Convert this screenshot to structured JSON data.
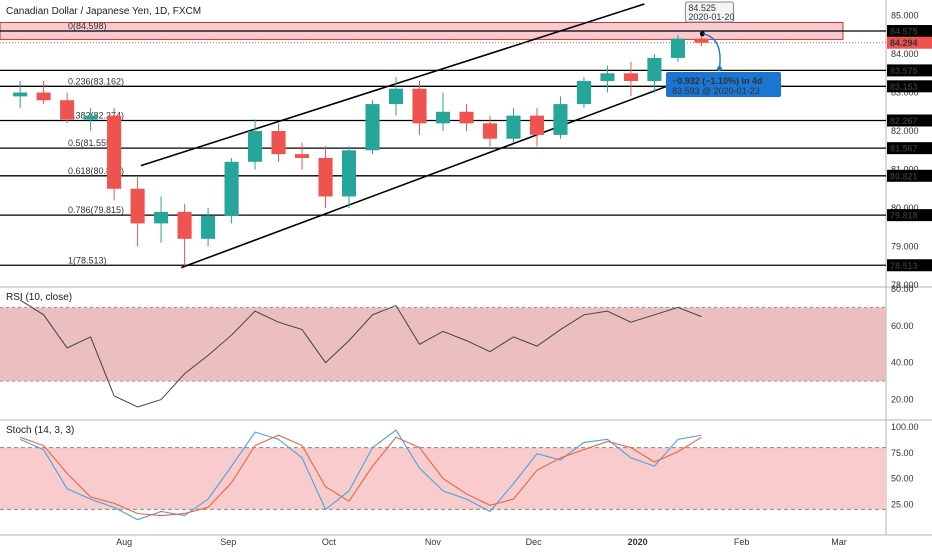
{
  "title": "Canadian Dollar / Japanese Yen, 1D, FXCM",
  "colors": {
    "up": "#26a69a",
    "down": "#ef5350",
    "rsi_line": "#444444",
    "rsi_band": "#e8b4b4",
    "stoch_band": "#f7c6c6",
    "stoch_k": "#4aa3df",
    "stoch_d": "#f0643c",
    "highlight_box": "#f5b8c0",
    "measure": "#1976d2"
  },
  "chart_data": [
    {
      "type": "candlestick",
      "name": "price",
      "title": "Canadian Dollar / Japanese Yen, 1D, FXCM",
      "ylim": [
        78.0,
        85.3
      ],
      "y_ticks": [
        "85.000",
        "84.000",
        "83.000",
        "82.000",
        "81.000",
        "80.000",
        "79.000",
        "78.000"
      ],
      "x_ticks": [
        "Aug",
        "Sep",
        "Oct",
        "Nov",
        "Dec",
        "2020",
        "Feb",
        "Mar"
      ],
      "fib_levels": [
        {
          "label": "0(84.598)",
          "value": 84.598,
          "axis_label": "84.575"
        },
        {
          "label": "0.236(83.162)",
          "value": 83.162,
          "axis_label": "83.153"
        },
        {
          "label": "0.382(82.274)",
          "value": 82.274,
          "axis_label": "82.267"
        },
        {
          "label": "0.5(81.555)",
          "value": 81.555,
          "axis_label": "81.567"
        },
        {
          "label": "0.618(80.837)",
          "value": 80.837,
          "axis_label": "80.821"
        },
        {
          "label": "0.786(79.815)",
          "value": 79.815,
          "axis_label": "79.818"
        },
        {
          "label": "1(78.513)",
          "value": 78.513,
          "axis_label": "78.513"
        }
      ],
      "extra_level": {
        "value": 83.575,
        "axis_label": "83.575"
      },
      "current_price": {
        "value": 84.294,
        "label": "84.294"
      },
      "high_callout": {
        "price": "84.525",
        "date": "2020-01-20"
      },
      "measure_callout": {
        "change": "−0.932 (−1.10%) in 4d",
        "target": "83.593 @ 2020-01-23"
      },
      "channel": {
        "upper": [
          [
            "2019-08-06",
            81.1
          ],
          [
            "2020-01-03",
            85.3
          ]
        ],
        "lower": [
          [
            "2019-08-18",
            78.45
          ],
          [
            "2020-01-17",
            83.4
          ]
        ]
      },
      "candles": [
        [
          "2019-07-01",
          82.9,
          83.3,
          82.6,
          83.0
        ],
        [
          "2019-07-08",
          83.0,
          83.3,
          82.7,
          82.8
        ],
        [
          "2019-07-15",
          82.8,
          83.0,
          82.2,
          82.3
        ],
        [
          "2019-07-22",
          82.3,
          82.6,
          82.0,
          82.4
        ],
        [
          "2019-07-29",
          82.4,
          82.6,
          80.2,
          80.5
        ],
        [
          "2019-08-05",
          80.5,
          80.8,
          79.0,
          79.6
        ],
        [
          "2019-08-12",
          79.6,
          80.3,
          79.1,
          79.9
        ],
        [
          "2019-08-19",
          79.9,
          80.1,
          78.5,
          79.2
        ],
        [
          "2019-08-26",
          79.2,
          80.0,
          79.0,
          79.8
        ],
        [
          "2019-09-02",
          79.8,
          81.3,
          79.6,
          81.2
        ],
        [
          "2019-09-09",
          81.2,
          82.3,
          81.0,
          82.0
        ],
        [
          "2019-09-16",
          82.0,
          82.2,
          81.2,
          81.4
        ],
        [
          "2019-09-23",
          81.4,
          81.7,
          81.0,
          81.3
        ],
        [
          "2019-09-30",
          81.3,
          81.6,
          80.0,
          80.3
        ],
        [
          "2019-10-07",
          80.3,
          81.6,
          80.0,
          81.5
        ],
        [
          "2019-10-14",
          81.5,
          82.8,
          81.4,
          82.7
        ],
        [
          "2019-10-21",
          82.7,
          83.4,
          82.4,
          83.1
        ],
        [
          "2019-10-28",
          83.1,
          83.3,
          81.9,
          82.2
        ],
        [
          "2019-11-04",
          82.2,
          83.0,
          82.0,
          82.5
        ],
        [
          "2019-11-11",
          82.5,
          82.7,
          82.0,
          82.2
        ],
        [
          "2019-11-18",
          82.2,
          82.4,
          81.6,
          81.8
        ],
        [
          "2019-11-25",
          81.8,
          82.6,
          81.7,
          82.4
        ],
        [
          "2019-12-02",
          82.4,
          82.6,
          81.6,
          81.9
        ],
        [
          "2019-12-09",
          81.9,
          82.9,
          81.8,
          82.7
        ],
        [
          "2019-12-16",
          82.7,
          83.4,
          82.6,
          83.3
        ],
        [
          "2019-12-23",
          83.3,
          83.7,
          83.0,
          83.5
        ],
        [
          "2019-12-30",
          83.5,
          83.8,
          82.9,
          83.3
        ],
        [
          "2020-01-06",
          83.3,
          84.0,
          83.0,
          83.9
        ],
        [
          "2020-01-13",
          83.9,
          84.5,
          83.8,
          84.4
        ],
        [
          "2020-01-20",
          84.4,
          84.525,
          84.2,
          84.294
        ]
      ]
    },
    {
      "type": "line",
      "name": "rsi",
      "title": "RSI (10, close)",
      "ylim": [
        10,
        80
      ],
      "y_ticks": [
        "80.00",
        "60.00",
        "40.00",
        "20.00"
      ],
      "band": [
        30,
        70
      ],
      "series": [
        {
          "values": [
            [
              "2019-07-01",
              74
            ],
            [
              "2019-07-08",
              66
            ],
            [
              "2019-07-15",
              48
            ],
            [
              "2019-07-22",
              54
            ],
            [
              "2019-07-29",
              22
            ],
            [
              "2019-08-05",
              16
            ],
            [
              "2019-08-12",
              20
            ],
            [
              "2019-08-19",
              34
            ],
            [
              "2019-08-26",
              44
            ],
            [
              "2019-09-02",
              55
            ],
            [
              "2019-09-09",
              68
            ],
            [
              "2019-09-16",
              62
            ],
            [
              "2019-09-23",
              58
            ],
            [
              "2019-09-30",
              40
            ],
            [
              "2019-10-07",
              52
            ],
            [
              "2019-10-14",
              66
            ],
            [
              "2019-10-21",
              71
            ],
            [
              "2019-10-28",
              50
            ],
            [
              "2019-11-04",
              57
            ],
            [
              "2019-11-11",
              52
            ],
            [
              "2019-11-18",
              46
            ],
            [
              "2019-11-25",
              54
            ],
            [
              "2019-12-02",
              49
            ],
            [
              "2019-12-09",
              58
            ],
            [
              "2019-12-16",
              66
            ],
            [
              "2019-12-23",
              68
            ],
            [
              "2019-12-30",
              62
            ],
            [
              "2020-01-06",
              66
            ],
            [
              "2020-01-13",
              70
            ],
            [
              "2020-01-20",
              65
            ]
          ]
        }
      ]
    },
    {
      "type": "line",
      "name": "stoch",
      "title": "Stoch (14, 3, 3)",
      "ylim": [
        0,
        100
      ],
      "y_ticks": [
        "100.00",
        "75.00",
        "50.00",
        "25.00"
      ],
      "band": [
        20,
        80
      ],
      "series": [
        {
          "values": [
            [
              "2019-07-01",
              88
            ],
            [
              "2019-07-08",
              78
            ],
            [
              "2019-07-15",
              40
            ],
            [
              "2019-07-22",
              30
            ],
            [
              "2019-07-29",
              22
            ],
            [
              "2019-08-05",
              10
            ],
            [
              "2019-08-12",
              18
            ],
            [
              "2019-08-19",
              14
            ],
            [
              "2019-08-26",
              30
            ],
            [
              "2019-09-02",
              62
            ],
            [
              "2019-09-09",
              95
            ],
            [
              "2019-09-16",
              88
            ],
            [
              "2019-09-23",
              70
            ],
            [
              "2019-09-30",
              20
            ],
            [
              "2019-10-07",
              38
            ],
            [
              "2019-10-14",
              80
            ],
            [
              "2019-10-21",
              97
            ],
            [
              "2019-10-28",
              60
            ],
            [
              "2019-11-04",
              38
            ],
            [
              "2019-11-11",
              30
            ],
            [
              "2019-11-18",
              18
            ],
            [
              "2019-11-25",
              45
            ],
            [
              "2019-12-02",
              74
            ],
            [
              "2019-12-09",
              68
            ],
            [
              "2019-12-16",
              85
            ],
            [
              "2019-12-23",
              88
            ],
            [
              "2019-12-30",
              70
            ],
            [
              "2020-01-06",
              62
            ],
            [
              "2020-01-13",
              88
            ],
            [
              "2020-01-20",
              92
            ]
          ]
        },
        {
          "values": [
            [
              "2019-07-01",
              90
            ],
            [
              "2019-07-08",
              82
            ],
            [
              "2019-07-15",
              55
            ],
            [
              "2019-07-22",
              32
            ],
            [
              "2019-07-29",
              26
            ],
            [
              "2019-08-05",
              16
            ],
            [
              "2019-08-12",
              14
            ],
            [
              "2019-08-19",
              16
            ],
            [
              "2019-08-26",
              22
            ],
            [
              "2019-09-02",
              46
            ],
            [
              "2019-09-09",
              82
            ],
            [
              "2019-09-16",
              92
            ],
            [
              "2019-09-23",
              82
            ],
            [
              "2019-09-30",
              42
            ],
            [
              "2019-10-07",
              28
            ],
            [
              "2019-10-14",
              62
            ],
            [
              "2019-10-21",
              90
            ],
            [
              "2019-10-28",
              80
            ],
            [
              "2019-11-04",
              50
            ],
            [
              "2019-11-11",
              35
            ],
            [
              "2019-11-18",
              24
            ],
            [
              "2019-11-25",
              30
            ],
            [
              "2019-12-02",
              58
            ],
            [
              "2019-12-09",
              70
            ],
            [
              "2019-12-16",
              78
            ],
            [
              "2019-12-23",
              86
            ],
            [
              "2019-12-30",
              80
            ],
            [
              "2020-01-06",
              66
            ],
            [
              "2020-01-13",
              76
            ],
            [
              "2020-01-20",
              90
            ]
          ]
        }
      ]
    }
  ]
}
